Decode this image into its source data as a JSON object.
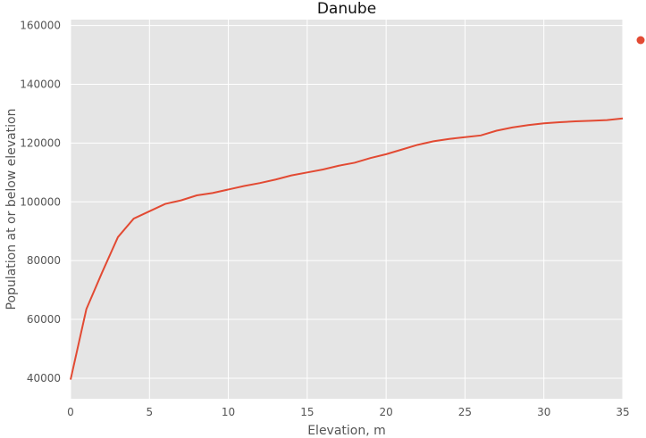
{
  "chart_data": {
    "type": "line",
    "title": "Danube",
    "xlabel": "Elevation, m",
    "ylabel": "Population at or below elevation",
    "xlim": [
      0,
      35
    ],
    "ylim": [
      33000,
      162000
    ],
    "xticks": [
      0,
      5,
      10,
      15,
      20,
      25,
      30,
      35
    ],
    "yticks": [
      40000,
      60000,
      80000,
      100000,
      120000,
      140000,
      160000
    ],
    "grid": true,
    "legend": "right",
    "colors": {
      "plot_bg": "#e5e5e5",
      "grid": "#ffffff",
      "line": "#e24a33"
    },
    "series": [
      {
        "x": [
          0,
          1,
          2,
          3,
          4,
          5,
          6,
          7,
          8,
          9,
          10,
          11,
          12,
          13,
          14,
          15,
          16,
          17,
          18,
          19,
          20,
          21,
          22,
          23,
          24,
          25,
          26,
          27,
          28,
          29,
          30,
          31,
          32,
          33,
          34,
          35
        ],
        "y": [
          39500,
          63500,
          76000,
          88000,
          94300,
          96800,
          99300,
          100500,
          102200,
          103000,
          104200,
          105400,
          106400,
          107600,
          109000,
          110000,
          111000,
          112300,
          113300,
          114900,
          116200,
          117800,
          119400,
          120600,
          121400,
          122000,
          122600,
          124200,
          125300,
          126100,
          126700,
          127100,
          127400,
          127600,
          127800,
          128400
        ]
      }
    ]
  }
}
